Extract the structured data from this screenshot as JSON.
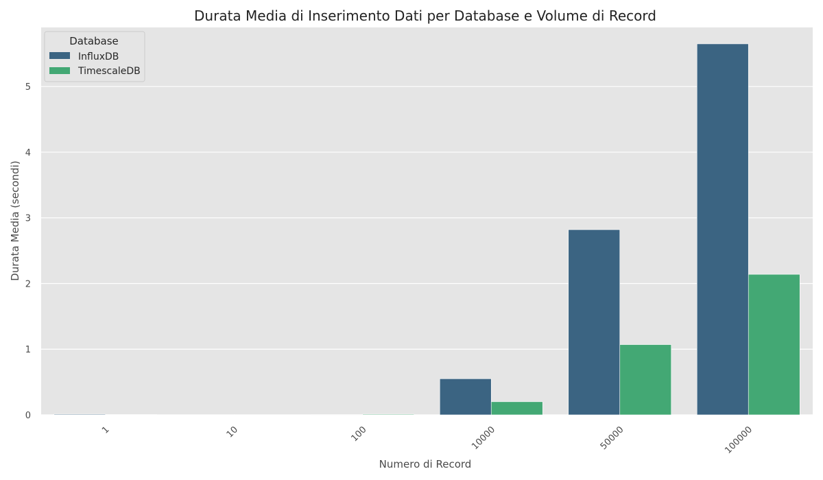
{
  "chart_data": {
    "type": "bar",
    "title": "Durata Media di Inserimento Dati per Database e Volume di Record",
    "xlabel": "Numero di Record",
    "ylabel": "Durata Media (secondi)",
    "categories": [
      "1",
      "10",
      "100",
      "10000",
      "50000",
      "100000"
    ],
    "series": [
      {
        "name": "InfluxDB",
        "color": "#3b6482",
        "values": [
          0.01,
          0.003,
          0.004,
          0.55,
          2.82,
          5.65
        ]
      },
      {
        "name": "TimescaleDB",
        "color": "#43a874",
        "values": [
          0.005,
          0.003,
          0.01,
          0.2,
          1.07,
          2.14
        ]
      }
    ],
    "ylim": [
      0,
      5.9
    ],
    "yticks": [
      0,
      1,
      2,
      3,
      4,
      5
    ],
    "grid": true,
    "legend": {
      "title": "Database",
      "placement": "top-left"
    },
    "background": "#e5e5e5",
    "grid_color": "#ffffff"
  }
}
